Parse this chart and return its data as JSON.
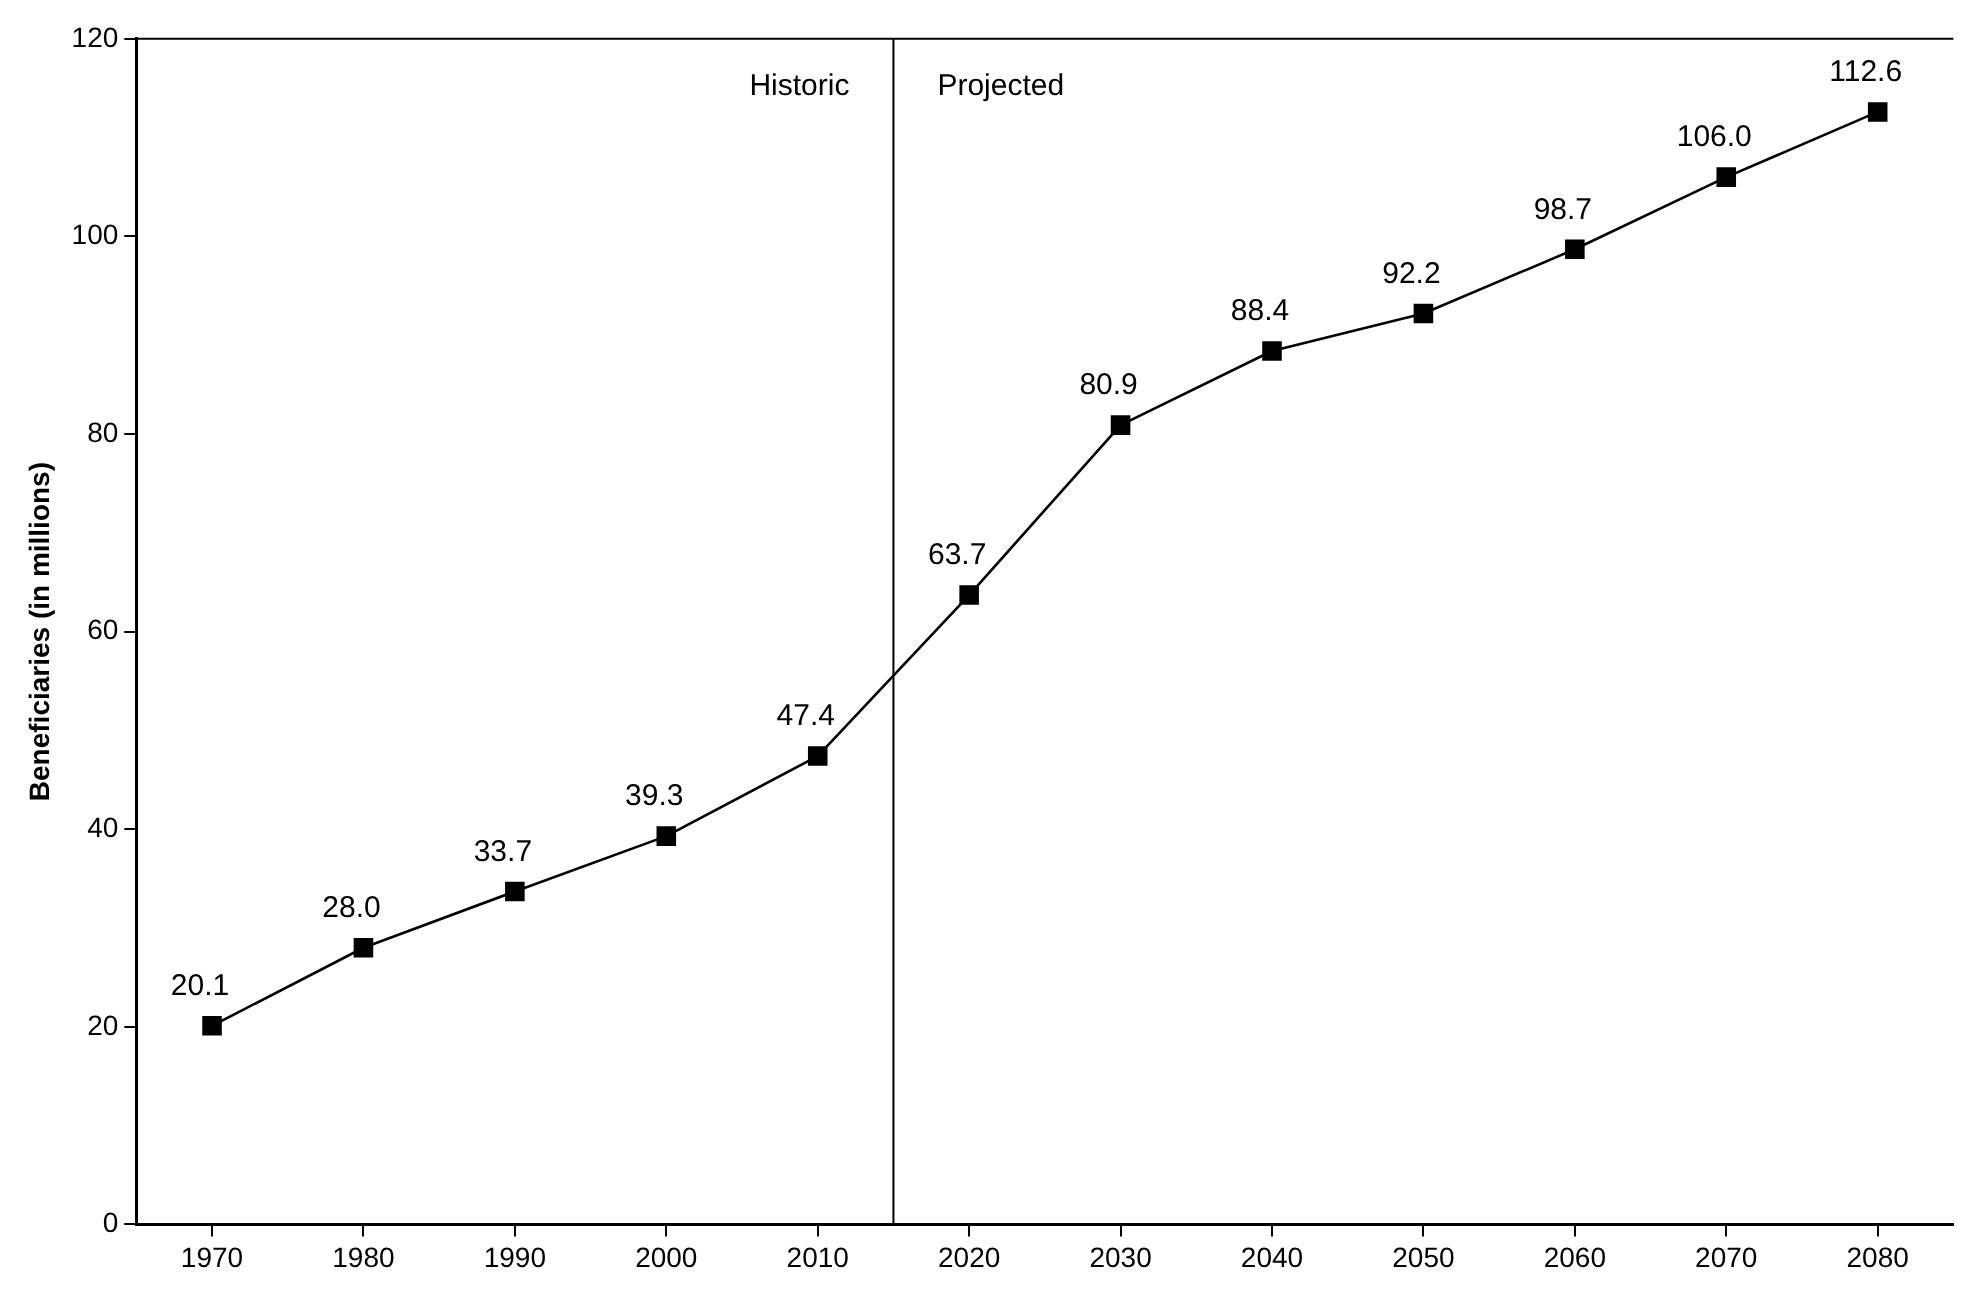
{
  "chart_data": {
    "type": "line",
    "ylabel": "Beneficiaries (in millions)",
    "x": [
      1970,
      1980,
      1990,
      2000,
      2010,
      2020,
      2030,
      2040,
      2050,
      2060,
      2070,
      2080
    ],
    "series": [
      {
        "color": "#000000",
        "values": [
          20.1,
          28.0,
          33.7,
          39.3,
          47.4,
          63.7,
          80.9,
          88.4,
          92.2,
          98.7,
          106.0,
          112.6
        ],
        "value_labels": [
          "20.1",
          "28.0",
          "33.7",
          "39.3",
          "47.4",
          "63.7",
          "80.9",
          "88.4",
          "92.2",
          "98.7",
          "106.0",
          "112.6"
        ]
      }
    ],
    "xlim": [
      1965,
      2085
    ],
    "xticks": [
      1970,
      1980,
      1990,
      2000,
      2010,
      2020,
      2030,
      2040,
      2050,
      2060,
      2070,
      2080
    ],
    "ylim": [
      0,
      120
    ],
    "yticks": [
      0,
      20,
      40,
      60,
      80,
      100,
      120
    ],
    "ref_lines": [
      {
        "axis": "x",
        "value": 2015,
        "color": "#000000"
      }
    ],
    "annotations": [
      "Historic",
      "Projected"
    ],
    "grid": false,
    "legend": false,
    "marker": "square",
    "line_style": "solid"
  }
}
